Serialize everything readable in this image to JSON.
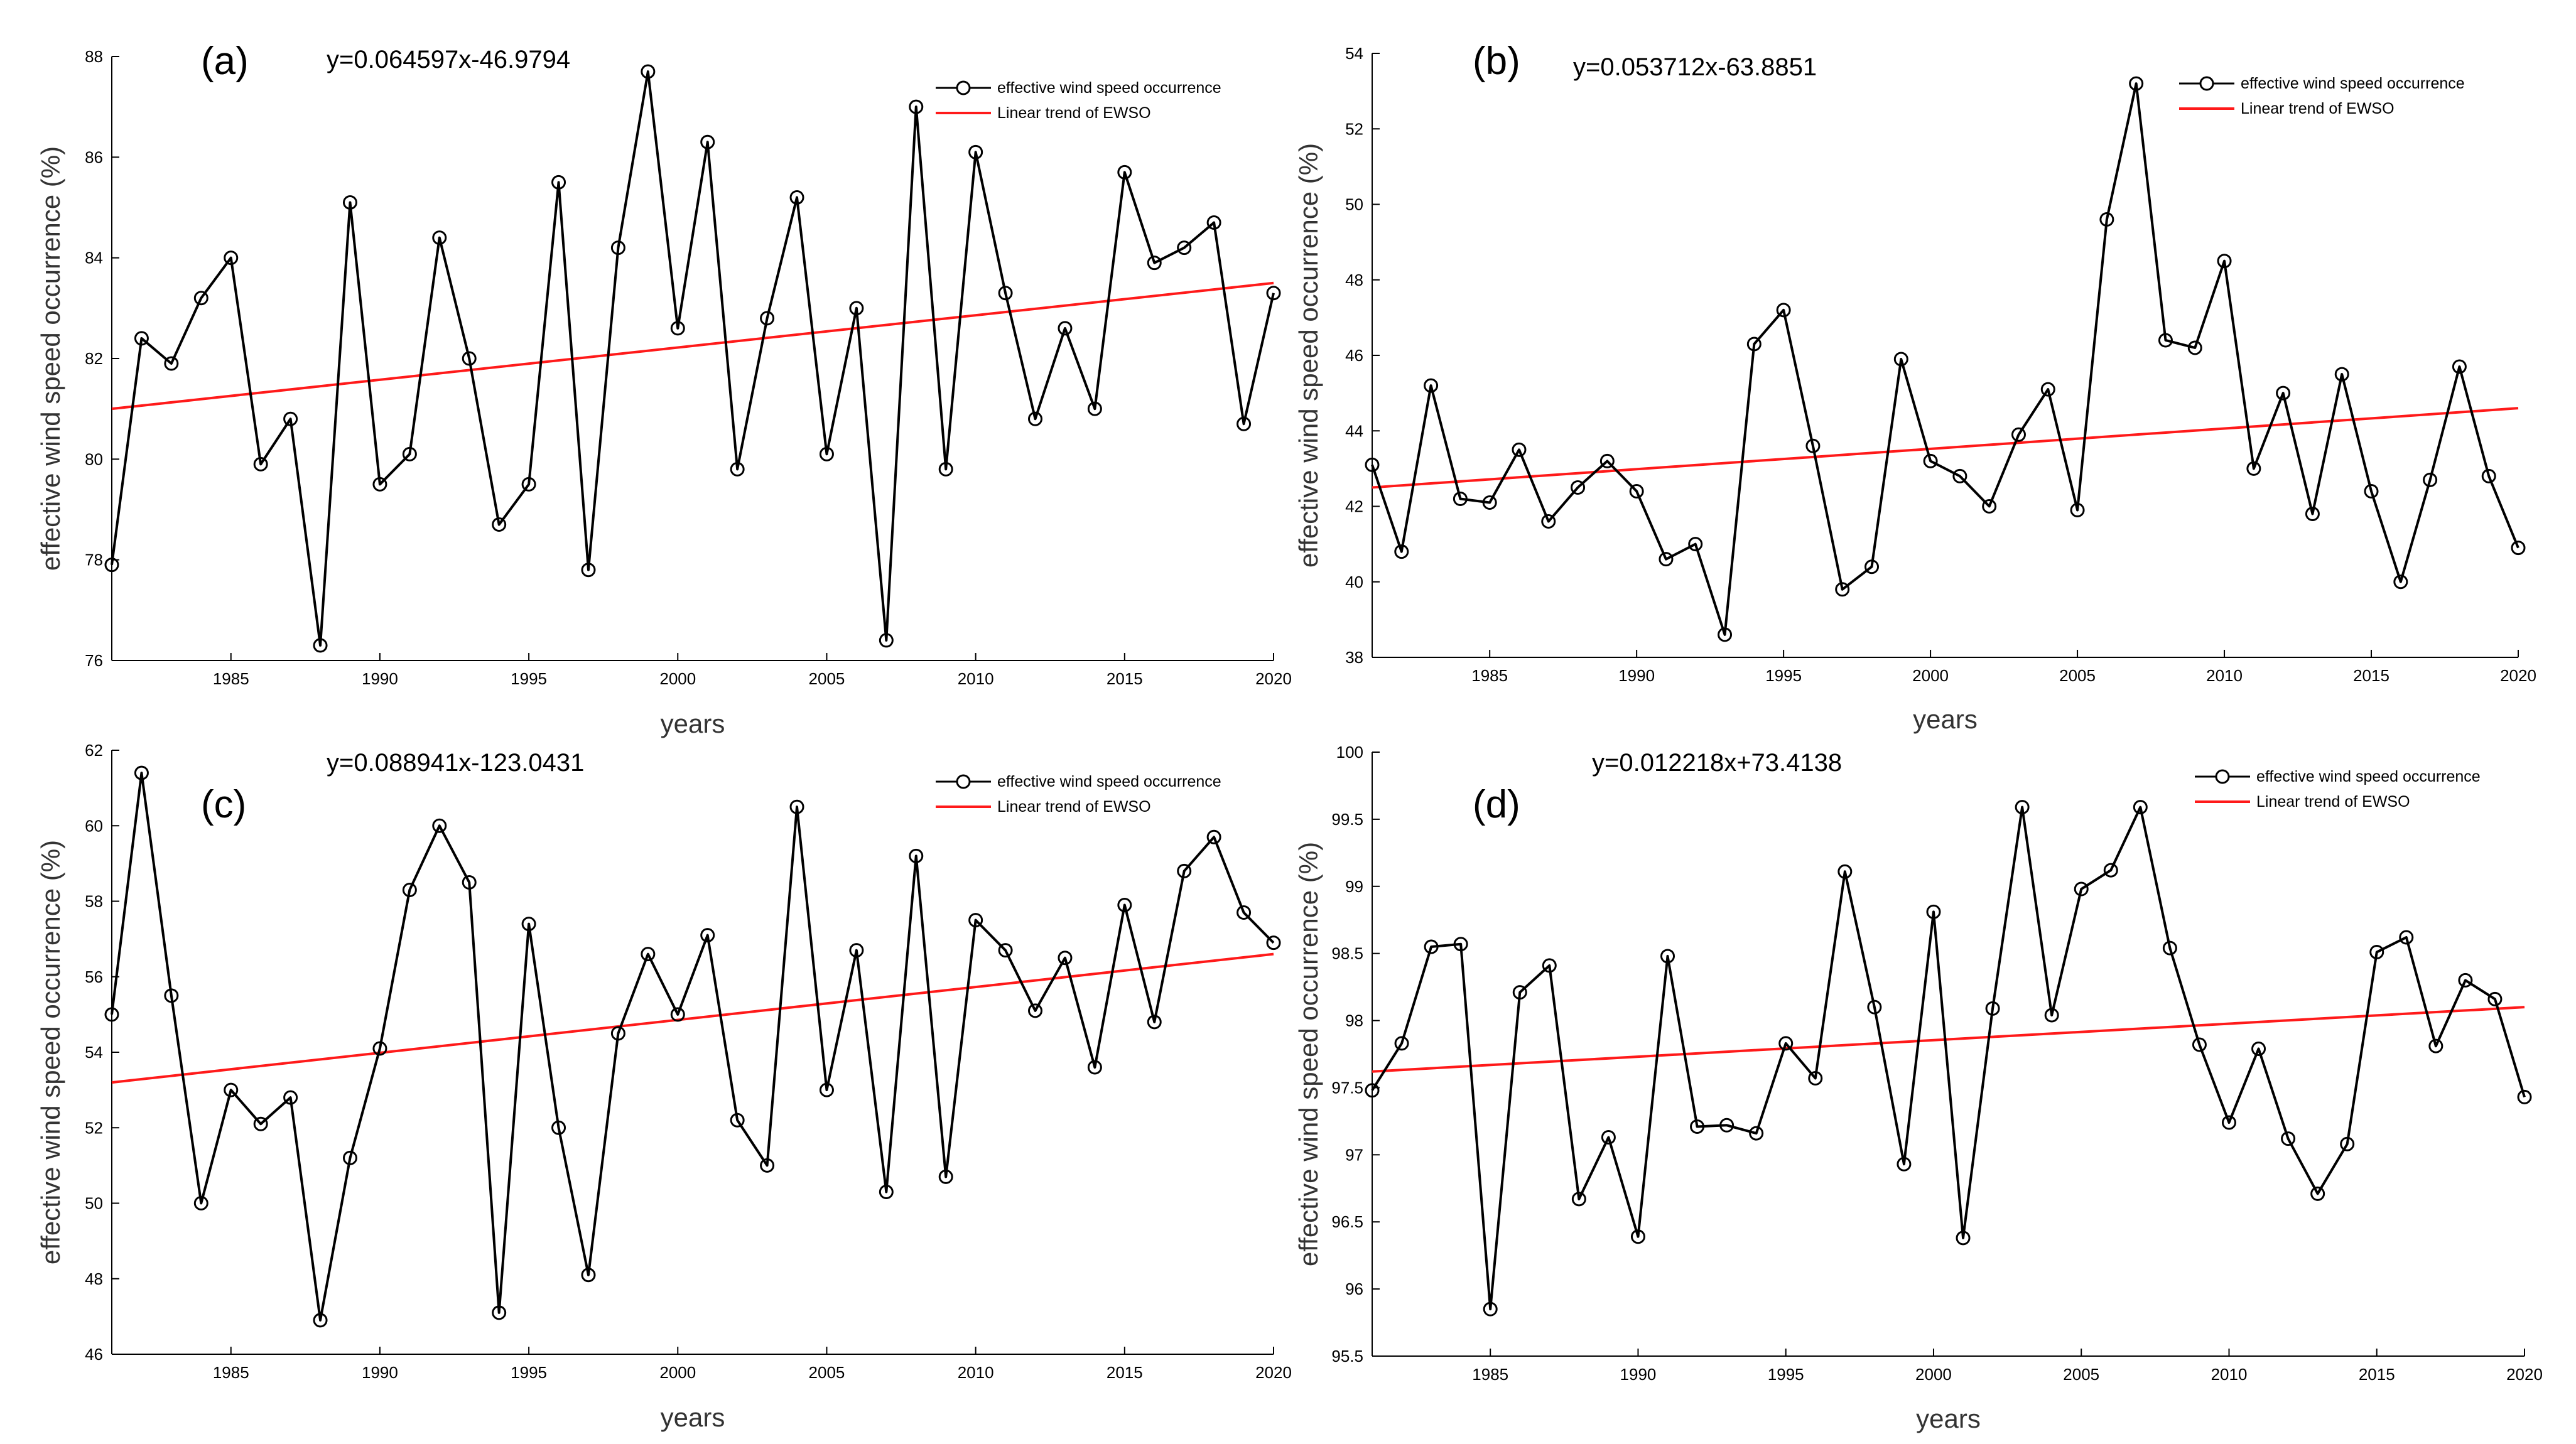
{
  "figure": {
    "legend_series_label": "effective wind speed occurrence",
    "legend_trend_label": "Linear trend of EWSO"
  },
  "colors": {
    "series": "#000000",
    "trend": "#ff1a1a",
    "axis": "#000000"
  },
  "chart_data": [
    {
      "type": "line",
      "panel_label": "(a)",
      "equation": "y=0.064597x-46.9794",
      "xlabel": "years",
      "ylabel": "effective wind speed occurrence (%)",
      "xlim": [
        1981,
        2020
      ],
      "ylim": [
        76,
        88
      ],
      "xticks": [
        1985,
        1990,
        1995,
        2000,
        2005,
        2010,
        2015,
        2020
      ],
      "yticks": [
        76,
        78,
        80,
        82,
        84,
        86,
        88
      ],
      "x": [
        1981,
        1982,
        1983,
        1984,
        1985,
        1986,
        1987,
        1988,
        1989,
        1990,
        1991,
        1992,
        1993,
        1994,
        1995,
        1996,
        1997,
        1998,
        1999,
        2000,
        2001,
        2002,
        2003,
        2004,
        2005,
        2006,
        2007,
        2008,
        2009,
        2010,
        2011,
        2012,
        2013,
        2014,
        2015,
        2016,
        2017,
        2018,
        2019,
        2020
      ],
      "series": [
        {
          "name": "effective wind speed occurrence",
          "values": [
            77.9,
            82.4,
            81.9,
            83.2,
            84.0,
            79.9,
            80.8,
            76.3,
            85.1,
            79.5,
            80.1,
            84.4,
            82.0,
            78.7,
            79.5,
            85.5,
            77.8,
            84.2,
            87.7,
            82.6,
            86.3,
            79.8,
            82.8,
            85.2,
            80.1,
            83.0,
            76.4,
            87.0,
            79.8,
            86.1,
            83.3,
            80.8,
            82.6,
            81.0,
            85.7,
            83.9,
            84.2,
            84.7,
            80.7,
            83.3
          ]
        }
      ],
      "trend": {
        "name": "Linear trend of EWSO",
        "y_start": 81.0,
        "y_end": 83.5
      }
    },
    {
      "type": "line",
      "panel_label": "(b)",
      "equation": "y=0.053712x-63.8851",
      "xlabel": "years",
      "ylabel": "effective wind speed occurrence (%)",
      "xlim": [
        1981,
        2020
      ],
      "ylim": [
        38,
        54
      ],
      "xticks": [
        1985,
        1990,
        1995,
        2000,
        2005,
        2010,
        2015,
        2020
      ],
      "yticks": [
        38,
        40,
        42,
        44,
        46,
        48,
        50,
        52,
        54
      ],
      "x": [
        1981,
        1982,
        1983,
        1984,
        1985,
        1986,
        1987,
        1988,
        1989,
        1990,
        1991,
        1992,
        1993,
        1994,
        1995,
        1996,
        1997,
        1998,
        1999,
        2000,
        2001,
        2002,
        2003,
        2004,
        2005,
        2006,
        2007,
        2008,
        2009,
        2010,
        2011,
        2012,
        2013,
        2014,
        2015,
        2016,
        2017,
        2018,
        2019,
        2020
      ],
      "series": [
        {
          "name": "effective wind speed occurrence",
          "values": [
            43.1,
            40.8,
            45.2,
            42.2,
            42.1,
            43.5,
            41.6,
            42.5,
            43.2,
            42.4,
            40.6,
            41.0,
            38.6,
            46.3,
            47.2,
            43.6,
            39.8,
            40.4,
            45.9,
            43.2,
            42.8,
            42.0,
            43.9,
            45.1,
            41.9,
            49.6,
            53.2,
            46.4,
            46.2,
            48.5,
            43.0,
            45.0,
            41.8,
            45.5,
            42.4,
            40.0,
            42.7,
            45.7,
            42.8,
            40.9
          ]
        }
      ],
      "trend": {
        "name": "Linear trend of EWSO",
        "y_start": 42.5,
        "y_end": 44.6
      }
    },
    {
      "type": "line",
      "panel_label": "(c)",
      "equation": "y=0.088941x-123.0431",
      "xlabel": "years",
      "ylabel": "effective wind speed occurrence (%)",
      "xlim": [
        1981,
        2020
      ],
      "ylim": [
        46,
        62
      ],
      "xticks": [
        1985,
        1990,
        1995,
        2000,
        2005,
        2010,
        2015,
        2020
      ],
      "yticks": [
        46,
        48,
        50,
        52,
        54,
        56,
        58,
        60,
        62
      ],
      "x": [
        1981,
        1982,
        1983,
        1984,
        1985,
        1986,
        1987,
        1988,
        1989,
        1990,
        1991,
        1992,
        1993,
        1994,
        1995,
        1996,
        1997,
        1998,
        1999,
        2000,
        2001,
        2002,
        2003,
        2004,
        2005,
        2006,
        2007,
        2008,
        2009,
        2010,
        2011,
        2012,
        2013,
        2014,
        2015,
        2016,
        2017,
        2018,
        2019,
        2020
      ],
      "series": [
        {
          "name": "effective wind speed occurrence",
          "values": [
            55.0,
            61.4,
            55.5,
            50.0,
            53.0,
            52.1,
            52.8,
            46.9,
            51.2,
            54.1,
            58.3,
            60.0,
            58.5,
            47.1,
            57.4,
            52.0,
            48.1,
            54.5,
            56.6,
            55.0,
            57.1,
            52.2,
            51.0,
            60.5,
            53.0,
            56.7,
            50.3,
            59.2,
            50.7,
            57.5,
            56.7,
            55.1,
            56.5,
            53.6,
            57.9,
            54.8,
            58.8,
            59.7,
            57.7,
            56.9
          ]
        }
      ],
      "trend": {
        "name": "Linear trend of EWSO",
        "y_start": 53.2,
        "y_end": 56.6
      }
    },
    {
      "type": "line",
      "panel_label": "(d)",
      "equation": "y=0.012218x+73.4138",
      "xlabel": "years",
      "ylabel": "effective wind speed occurrence (%)",
      "xlim": [
        1981,
        2020
      ],
      "ylim": [
        95.5,
        100
      ],
      "xticks": [
        1985,
        1990,
        1995,
        2000,
        2005,
        2010,
        2015,
        2020
      ],
      "yticks": [
        95.5,
        96,
        96.5,
        97,
        97.5,
        98,
        98.5,
        99,
        99.5,
        100
      ],
      "x": [
        1981,
        1982,
        1983,
        1984,
        1985,
        1986,
        1987,
        1988,
        1989,
        1990,
        1991,
        1992,
        1993,
        1994,
        1995,
        1996,
        1997,
        1998,
        1999,
        2000,
        2001,
        2002,
        2003,
        2004,
        2005,
        2006,
        2007,
        2008,
        2009,
        2010,
        2011,
        2012,
        2013,
        2014,
        2015,
        2016,
        2017,
        2018,
        2019,
        2020
      ],
      "series": [
        {
          "name": "effective wind speed occurrence",
          "values": [
            97.48,
            97.83,
            98.55,
            98.57,
            95.85,
            98.21,
            98.41,
            96.67,
            97.13,
            96.39,
            98.48,
            97.21,
            97.22,
            97.16,
            97.83,
            97.57,
            99.11,
            98.1,
            96.93,
            98.81,
            96.38,
            98.09,
            99.59,
            98.04,
            98.98,
            99.12,
            99.59,
            98.54,
            97.82,
            97.24,
            97.79,
            97.12,
            96.71,
            97.08,
            98.51,
            98.62,
            97.81,
            98.3,
            98.16,
            97.43
          ]
        }
      ],
      "trend": {
        "name": "Linear trend of EWSO",
        "y_start": 97.62,
        "y_end": 98.1
      }
    }
  ]
}
